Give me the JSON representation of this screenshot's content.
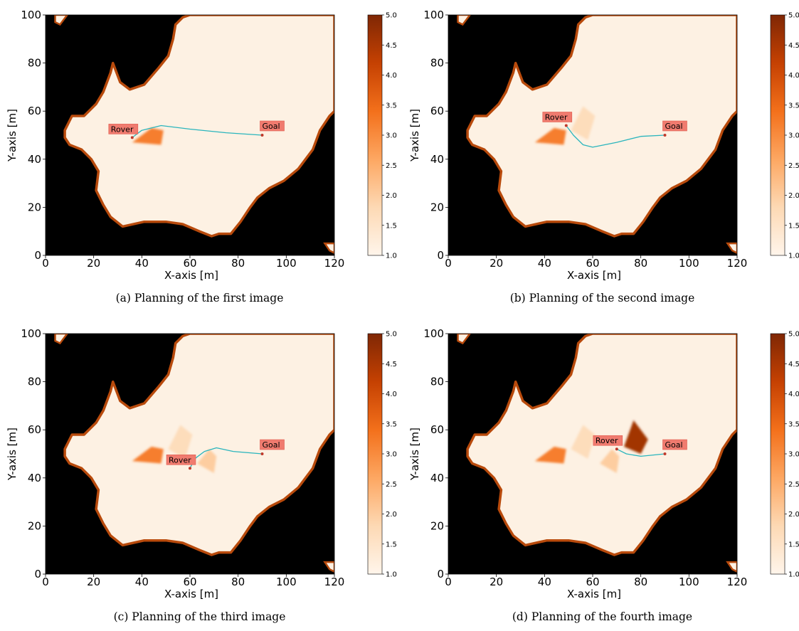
{
  "chart_data": [
    {
      "type": "heatmap",
      "caption": "(a)  Planning of the first image",
      "xlabel": "X-axis [m]",
      "ylabel": "Y-axis [m]",
      "xlim": [
        0,
        120
      ],
      "ylim": [
        0,
        100
      ],
      "xticks": [
        0,
        20,
        40,
        60,
        80,
        100,
        120
      ],
      "yticks": [
        0,
        20,
        40,
        60,
        80,
        100
      ],
      "colorbar": {
        "min": 1.0,
        "max": 5.0,
        "ticks": [
          "1.0",
          "1.5",
          "2.0",
          "2.5",
          "3.0",
          "3.5",
          "4.0",
          "4.5",
          "5.0"
        ]
      },
      "rover": {
        "label": "Rover",
        "x": 36,
        "y": 49
      },
      "goal": {
        "label": "Goal",
        "x": 90,
        "y": 50
      },
      "path": [
        [
          36,
          49
        ],
        [
          40,
          52
        ],
        [
          48,
          54
        ],
        [
          60,
          52.5
        ],
        [
          75,
          51
        ],
        [
          90,
          50
        ]
      ],
      "obstacles": [
        {
          "cost": 3.2,
          "points": [
            [
              36,
              47
            ],
            [
              44,
              53
            ],
            [
              49,
              52
            ],
            [
              48,
              46
            ]
          ]
        }
      ]
    },
    {
      "type": "heatmap",
      "caption": "(b)  Planning of the second image",
      "xlabel": "X-axis [m]",
      "ylabel": "Y-axis [m]",
      "xlim": [
        0,
        120
      ],
      "ylim": [
        0,
        100
      ],
      "xticks": [
        0,
        20,
        40,
        60,
        80,
        100,
        120
      ],
      "yticks": [
        0,
        20,
        40,
        60,
        80,
        100
      ],
      "colorbar": {
        "min": 1.0,
        "max": 5.0,
        "ticks": [
          "1.0",
          "1.5",
          "2.0",
          "2.5",
          "3.0",
          "3.5",
          "4.0",
          "4.5",
          "5.0"
        ]
      },
      "rover": {
        "label": "Rover",
        "x": 49,
        "y": 54
      },
      "goal": {
        "label": "Goal",
        "x": 90,
        "y": 50
      },
      "path": [
        [
          49,
          54
        ],
        [
          52,
          50
        ],
        [
          56,
          46
        ],
        [
          60,
          45
        ],
        [
          70,
          47
        ],
        [
          80,
          49.5
        ],
        [
          90,
          50
        ]
      ],
      "obstacles": [
        {
          "cost": 3.2,
          "points": [
            [
              36,
              47
            ],
            [
              44,
              53
            ],
            [
              49,
              52
            ],
            [
              48,
              46
            ]
          ]
        },
        {
          "cost": 1.7,
          "points": [
            [
              51,
              52
            ],
            [
              56,
              62
            ],
            [
              61,
              58
            ],
            [
              58,
              48
            ]
          ]
        }
      ]
    },
    {
      "type": "heatmap",
      "caption": "(c)  Planning of the third image",
      "xlabel": "X-axis [m]",
      "ylabel": "Y-axis [m]",
      "xlim": [
        0,
        120
      ],
      "ylim": [
        0,
        100
      ],
      "xticks": [
        0,
        20,
        40,
        60,
        80,
        100,
        120
      ],
      "yticks": [
        0,
        20,
        40,
        60,
        80,
        100
      ],
      "colorbar": {
        "min": 1.0,
        "max": 5.0,
        "ticks": [
          "1.0",
          "1.5",
          "2.0",
          "2.5",
          "3.0",
          "3.5",
          "4.0",
          "4.5",
          "5.0"
        ]
      },
      "rover": {
        "label": "Rover",
        "x": 60,
        "y": 44
      },
      "goal": {
        "label": "Goal",
        "x": 90,
        "y": 50
      },
      "path": [
        [
          60,
          44
        ],
        [
          62,
          48
        ],
        [
          66,
          51
        ],
        [
          71,
          52.5
        ],
        [
          78,
          51
        ],
        [
          90,
          50
        ]
      ],
      "obstacles": [
        {
          "cost": 3.2,
          "points": [
            [
              36,
              47
            ],
            [
              44,
              53
            ],
            [
              49,
              52
            ],
            [
              48,
              46
            ]
          ]
        },
        {
          "cost": 1.7,
          "points": [
            [
              51,
              52
            ],
            [
              56,
              62
            ],
            [
              61,
              58
            ],
            [
              58,
              48
            ]
          ]
        },
        {
          "cost": 2.0,
          "points": [
            [
              63,
              46
            ],
            [
              68,
              52
            ],
            [
              71,
              49
            ],
            [
              70,
              42
            ]
          ]
        }
      ]
    },
    {
      "type": "heatmap",
      "caption": "(d)  Planning of the fourth image",
      "xlabel": "X-axis [m]",
      "ylabel": "Y-axis [m]",
      "xlim": [
        0,
        120
      ],
      "ylim": [
        0,
        100
      ],
      "xticks": [
        0,
        20,
        40,
        60,
        80,
        100,
        120
      ],
      "yticks": [
        0,
        20,
        40,
        60,
        80,
        100
      ],
      "colorbar": {
        "min": 1.0,
        "max": 5.0,
        "ticks": [
          "1.0",
          "1.5",
          "2.0",
          "2.5",
          "3.0",
          "3.5",
          "4.0",
          "4.5",
          "5.0"
        ]
      },
      "rover": {
        "label": "Rover",
        "x": 70,
        "y": 52
      },
      "goal": {
        "label": "Goal",
        "x": 90,
        "y": 50
      },
      "path": [
        [
          70,
          52
        ],
        [
          74,
          50
        ],
        [
          80,
          49
        ],
        [
          90,
          50
        ]
      ],
      "obstacles": [
        {
          "cost": 3.2,
          "points": [
            [
              36,
              47
            ],
            [
              44,
              53
            ],
            [
              49,
              52
            ],
            [
              48,
              46
            ]
          ]
        },
        {
          "cost": 1.7,
          "points": [
            [
              51,
              52
            ],
            [
              56,
              62
            ],
            [
              61,
              58
            ],
            [
              58,
              48
            ]
          ]
        },
        {
          "cost": 2.0,
          "points": [
            [
              63,
              46
            ],
            [
              68,
              52
            ],
            [
              71,
              49
            ],
            [
              70,
              42
            ]
          ]
        },
        {
          "cost": 4.6,
          "points": [
            [
              73,
              53
            ],
            [
              77,
              64
            ],
            [
              83,
              56
            ],
            [
              80,
              50
            ]
          ]
        }
      ]
    }
  ],
  "terrain": {
    "free_color": "#fdf1e3",
    "blocked_color": "#000000",
    "edge_color": "#b84a0c",
    "cmap_low": "#fff5eb",
    "cmap_high": "#7f2704"
  }
}
